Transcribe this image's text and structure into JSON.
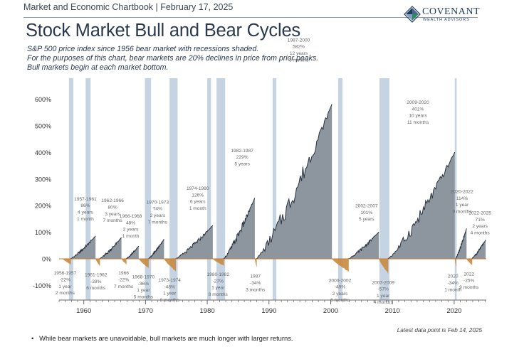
{
  "header": {
    "source_line": "Market and Economic Chartbook | February 17, 2025",
    "logo_name": "COVENANT",
    "logo_sub": "WEALTH ADVISORS"
  },
  "title": "Stock Market Bull and Bear Cycles",
  "subtitle_lines": [
    "S&P 500 price index since 1956 bear market with recessions shaded.",
    "For the purposes of this chart, bear markets are 20% declines in price from prior peaks.",
    "Bull markets begin at each market bottom."
  ],
  "note": "Latest data point is Feb 14, 2025",
  "bullet": "While bear markets are unavoidable, bull markets are much longer with larger returns.",
  "colors": {
    "bull_fill": "#8d959f",
    "bull_stroke": "#2c3440",
    "bear_fill": "#c98a3e",
    "recession": "#c6d3e3",
    "zero_line": "#c97a2e",
    "axis": "#666666"
  },
  "chart_data": {
    "type": "area",
    "title": "Stock Market Bull and Bear Cycles",
    "ylim": [
      -130,
      640
    ],
    "xlim": [
      1956,
      2025.2
    ],
    "y_ticks": [
      -100,
      0,
      100,
      200,
      300,
      400,
      500,
      600
    ],
    "y_tick_labels": [
      "-100%",
      "0%",
      "100%",
      "200%",
      "300%",
      "400%",
      "500%",
      "600%"
    ],
    "x_ticks": [
      1960,
      1970,
      1980,
      1990,
      2000,
      2010,
      2020
    ],
    "recessions": [
      [
        1957.6,
        1958.3
      ],
      [
        1960.3,
        1961.1
      ],
      [
        1969.9,
        1970.9
      ],
      [
        1973.9,
        1975.2
      ],
      [
        1980.0,
        1980.6
      ],
      [
        1981.5,
        1982.9
      ],
      [
        1990.6,
        1991.2
      ],
      [
        2001.2,
        2001.9
      ],
      [
        2007.9,
        2009.5
      ],
      [
        2020.1,
        2020.4
      ]
    ],
    "bull_markets": [
      {
        "start": 1957.8,
        "end": 1961.9,
        "gain": 86,
        "label": [
          "1957-1961",
          "86%",
          "4 years",
          "1 month"
        ]
      },
      {
        "start": 1962.5,
        "end": 1966.1,
        "gain": 80,
        "label": [
          "1962-1966",
          "80%",
          "3 years",
          "7 months"
        ]
      },
      {
        "start": 1966.8,
        "end": 1968.9,
        "gain": 48,
        "label": [
          "1966-1968",
          "48%",
          "2 years",
          "1 month"
        ]
      },
      {
        "start": 1970.4,
        "end": 1973.0,
        "gain": 74,
        "label": [
          "1970-1973",
          "74%",
          "2 years",
          "7 months"
        ]
      },
      {
        "start": 1974.8,
        "end": 1980.9,
        "gain": 126,
        "label": [
          "1974-1980",
          "126%",
          "6 years",
          "1 month"
        ]
      },
      {
        "start": 1982.6,
        "end": 1987.7,
        "gain": 229,
        "label": [
          "1982-1987",
          "229%",
          "5 years"
        ]
      },
      {
        "start": 1987.9,
        "end": 2000.2,
        "gain": 582,
        "label": [
          "1987-2000",
          "582%",
          "12 years",
          "3 months"
        ]
      },
      {
        "start": 2002.8,
        "end": 2007.8,
        "gain": 101,
        "label": [
          "2002-2007",
          "101%",
          "5 years"
        ]
      },
      {
        "start": 2009.2,
        "end": 2020.1,
        "gain": 401,
        "label": [
          "2009-2020",
          "401%",
          "10 years",
          "11 months"
        ]
      },
      {
        "start": 2020.2,
        "end": 2022.0,
        "gain": 114,
        "label": [
          "2020-2022",
          "114%",
          "1 year",
          "9 months"
        ]
      },
      {
        "start": 2022.8,
        "end": 2025.1,
        "gain": 71,
        "label": [
          "2022-2025",
          "71%",
          "2 years",
          "4 months"
        ]
      }
    ],
    "bear_markets": [
      {
        "start": 1956.6,
        "end": 1957.8,
        "drop": -22,
        "label": [
          "1956-1957",
          "-22%",
          "1 year",
          "2 months"
        ]
      },
      {
        "start": 1961.9,
        "end": 1962.5,
        "drop": -28,
        "label": [
          "1961-1962",
          "-28%",
          "6 months"
        ]
      },
      {
        "start": 1966.1,
        "end": 1966.8,
        "drop": -22,
        "label": [
          "1966",
          "-22%",
          "7 months"
        ]
      },
      {
        "start": 1968.9,
        "end": 1970.4,
        "drop": -36,
        "label": [
          "1968-1970",
          "-36%",
          "1 year",
          "5 months"
        ]
      },
      {
        "start": 1973.0,
        "end": 1974.8,
        "drop": -48,
        "label": [
          "1973-1974",
          "-48%",
          "1 year",
          "8 months"
        ]
      },
      {
        "start": 1980.9,
        "end": 1982.6,
        "drop": -27,
        "label": [
          "1980-1982",
          "-27%",
          "1 year",
          "8 months"
        ]
      },
      {
        "start": 1987.7,
        "end": 1987.9,
        "drop": -34,
        "label": [
          "1987",
          "-34%",
          "3 months"
        ]
      },
      {
        "start": 2000.2,
        "end": 2002.8,
        "drop": -49,
        "label": [
          "2000-2002",
          "-49%",
          "2 years",
          "6 months"
        ]
      },
      {
        "start": 2007.8,
        "end": 2009.2,
        "drop": -57,
        "label": [
          "2007-2009",
          "-57%",
          "1 year",
          "4 months"
        ]
      },
      {
        "start": 2020.1,
        "end": 2020.2,
        "drop": -34,
        "label": [
          "2020",
          "-34%",
          "1 month"
        ]
      },
      {
        "start": 2022.0,
        "end": 2022.8,
        "drop": -25,
        "label": [
          "2022",
          "-25%",
          "9 months"
        ]
      }
    ]
  }
}
